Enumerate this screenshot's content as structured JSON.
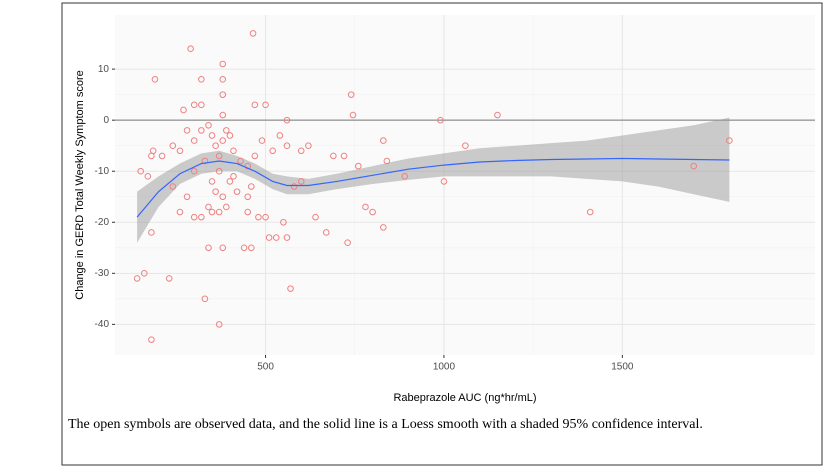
{
  "chart_data": {
    "type": "scatter",
    "x_label": "Rabeprazole AUC (ng*hr/mL)",
    "y_label": "Change in GERD Total Weekly Symptom score",
    "xlim": [
      78,
      2040
    ],
    "ylim": [
      -46,
      20.6
    ],
    "xticks": [
      500,
      1000,
      1500
    ],
    "yticks": [
      -40,
      -30,
      -20,
      -10,
      0,
      10
    ],
    "grid": true,
    "hline": 0,
    "points": {
      "color": "#f08080",
      "x": [
        190,
        290,
        465,
        380,
        380,
        320,
        300,
        320,
        270,
        470,
        500,
        380,
        380,
        560,
        740,
        745,
        1150,
        990,
        150,
        170,
        185,
        180,
        210,
        240,
        260,
        280,
        300,
        320,
        340,
        350,
        360,
        370,
        380,
        390,
        400,
        410,
        430,
        450,
        470,
        490,
        520,
        540,
        560,
        600,
        620,
        690,
        720,
        760,
        830,
        840,
        890,
        1060,
        1000,
        1700,
        1800,
        1410,
        180,
        160,
        140,
        230,
        180,
        330,
        370,
        570,
        340,
        380,
        440,
        460,
        240,
        260,
        280,
        300,
        320,
        340,
        350,
        360,
        370,
        380,
        390,
        400,
        420,
        450,
        460,
        480,
        510,
        530,
        550,
        560,
        580,
        600,
        640,
        670,
        730,
        780,
        800,
        830,
        500,
        300,
        330,
        350,
        370,
        410,
        450
      ],
      "y": [
        8,
        14,
        17,
        11,
        8,
        8,
        3,
        3,
        2,
        3,
        3,
        5,
        1,
        0,
        5,
        1,
        1,
        0,
        -10,
        -11,
        -6,
        -7,
        -7,
        -5,
        -6,
        -2,
        -4,
        -2,
        -1,
        -3,
        -5,
        -7,
        -4,
        -2,
        -3,
        -6,
        -8,
        -9,
        -7,
        -4,
        -6,
        -3,
        -5,
        -6,
        -5,
        -7,
        -7,
        -9,
        -4,
        -8,
        -11,
        -5,
        -12,
        -9,
        -4,
        -18,
        -22,
        -30,
        -31,
        -31,
        -43,
        -35,
        -40,
        -33,
        -25,
        -25,
        -25,
        -25,
        -13,
        -18,
        -15,
        -19,
        -19,
        -17,
        -18,
        -14,
        -18,
        -15,
        -17,
        -12,
        -14,
        -18,
        -13,
        -19,
        -23,
        -23,
        -20,
        -23,
        -13,
        -12,
        -19,
        -22,
        -24,
        -17,
        -18,
        -21,
        -19,
        -10,
        -8,
        -12,
        -10,
        -11,
        -15
      ]
    },
    "smooth": {
      "color": "#3366ff",
      "band_color": "#999999",
      "x": [
        140,
        200,
        260,
        320,
        370,
        420,
        470,
        520,
        560,
        620,
        700,
        800,
        900,
        1000,
        1100,
        1200,
        1300,
        1400,
        1500,
        1600,
        1700,
        1800
      ],
      "y": [
        -19,
        -14,
        -10.5,
        -8.5,
        -8,
        -8.5,
        -10,
        -12,
        -12.8,
        -12.8,
        -12,
        -10.8,
        -9.6,
        -8.8,
        -8.2,
        -7.9,
        -7.7,
        -7.6,
        -7.5,
        -7.6,
        -7.7,
        -7.8
      ],
      "upper": [
        -14,
        -11,
        -8.5,
        -6.5,
        -6,
        -7,
        -8.5,
        -10.5,
        -11,
        -11.5,
        -10.5,
        -9,
        -7.5,
        -6.5,
        -5.5,
        -5,
        -4.5,
        -4,
        -3,
        -2,
        -1,
        0.5
      ],
      "lower": [
        -24,
        -17,
        -12.5,
        -10.5,
        -10,
        -10,
        -11.5,
        -13.5,
        -14.5,
        -14.5,
        -13.5,
        -12.5,
        -11.7,
        -11,
        -11,
        -11,
        -11,
        -11.5,
        -12,
        -13,
        -14.5,
        -16
      ]
    }
  },
  "caption": "The open symbols are observed data, and the solid line is a Loess smooth with a shaded 95% confidence interval."
}
